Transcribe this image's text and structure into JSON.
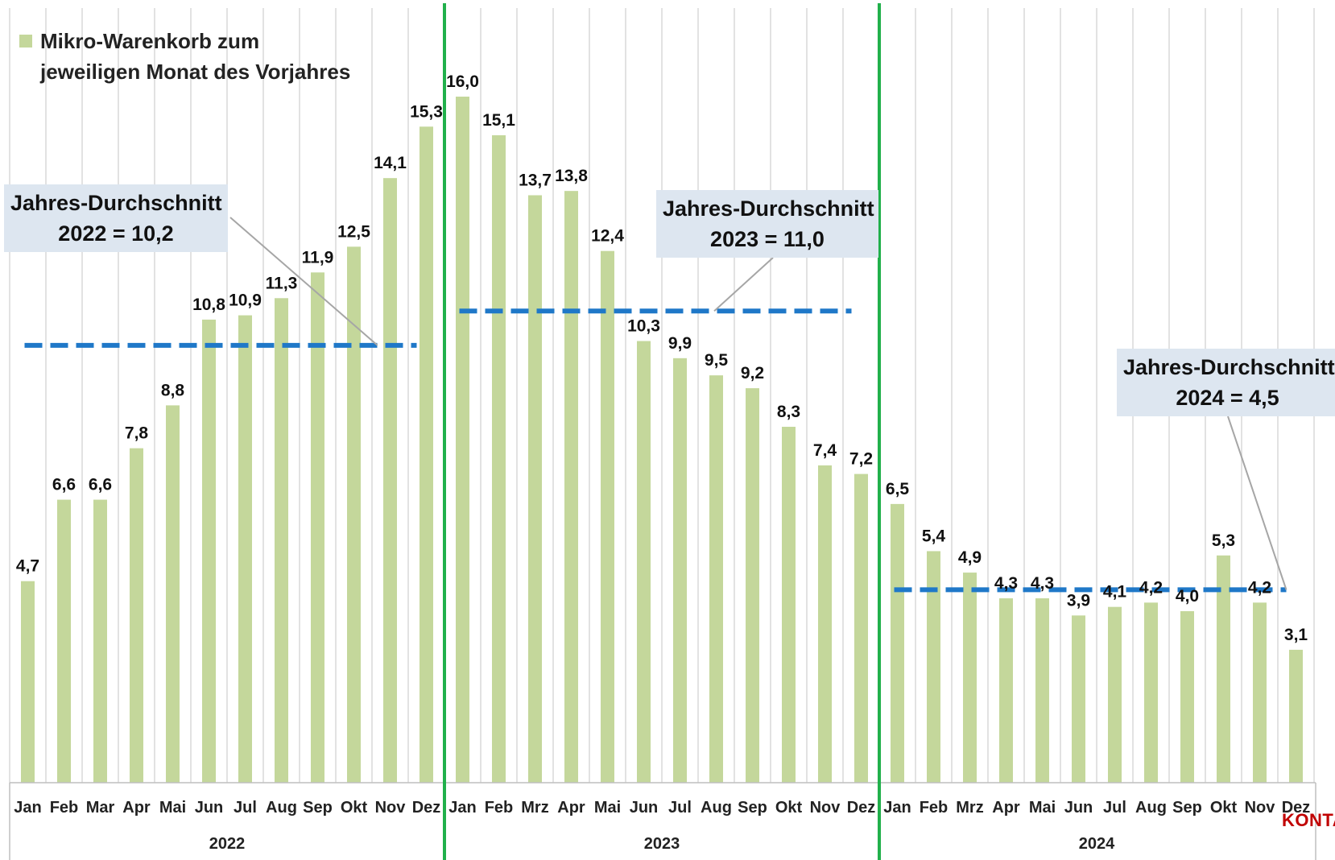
{
  "legend": {
    "line1": "Mikro-Warenkorb zum",
    "line2": "jeweiligen Monat des Vorjahres",
    "color": "#c4d79b"
  },
  "averages": [
    {
      "line1": "Jahres-Durchschnitt",
      "line2": "2022 = 10,2",
      "value": 10.2
    },
    {
      "line1": "Jahres-Durchschnitt",
      "line2": "2023 = 11,0",
      "value": 11.0
    },
    {
      "line1": "Jahres-Durchschnitt",
      "line2": "2024 = 4,5",
      "value": 4.5
    }
  ],
  "brand": "KONTA",
  "colors": {
    "bar": "#c4d79b",
    "average_line": "#1f78c8",
    "year_divider": "#21b04b",
    "gridline": "#d9d9d9",
    "box": "#dde6f0"
  },
  "chart_data": {
    "type": "bar",
    "ylim": [
      0,
      17.6
    ],
    "grid": true,
    "legend_position": "top-left",
    "years": [
      {
        "label": "2022",
        "months": [
          "Jan",
          "Feb",
          "Mar",
          "Apr",
          "Mai",
          "Jun",
          "Jul",
          "Aug",
          "Sep",
          "Okt",
          "Nov",
          "Dez"
        ],
        "values": [
          4.7,
          6.6,
          6.6,
          7.8,
          8.8,
          10.8,
          10.9,
          11.3,
          11.9,
          12.5,
          14.1,
          15.3
        ],
        "labels": [
          "4,7",
          "6,6",
          "6,6",
          "7,8",
          "8,8",
          "10,8",
          "10,9",
          "11,3",
          "11,9",
          "12,5",
          "14,1",
          "15,3"
        ],
        "average": 10.2
      },
      {
        "label": "2023",
        "months": [
          "Jan",
          "Feb",
          "Mrz",
          "Apr",
          "Mai",
          "Jun",
          "Jul",
          "Aug",
          "Sep",
          "Okt",
          "Nov",
          "Dez"
        ],
        "values": [
          16.0,
          15.1,
          13.7,
          13.8,
          12.4,
          10.3,
          9.9,
          9.5,
          9.2,
          8.3,
          7.4,
          7.2
        ],
        "labels": [
          "16,0",
          "15,1",
          "13,7",
          "13,8",
          "12,4",
          "10,3",
          "9,9",
          "9,5",
          "9,2",
          "8,3",
          "7,4",
          "7,2"
        ],
        "average": 11.0
      },
      {
        "label": "2024",
        "months": [
          "Jan",
          "Feb",
          "Mrz",
          "Apr",
          "Mai",
          "Jun",
          "Jul",
          "Aug",
          "Sep",
          "Okt",
          "Nov",
          "Dez"
        ],
        "values": [
          6.5,
          5.4,
          4.9,
          4.3,
          4.3,
          3.9,
          4.1,
          4.2,
          4.0,
          5.3,
          4.2,
          3.1
        ],
        "labels": [
          "6,5",
          "5,4",
          "4,9",
          "4,3",
          "4,3",
          "3,9",
          "4,1",
          "4,2",
          "4,0",
          "5,3",
          "4,2",
          "3,1"
        ],
        "average": 4.5
      }
    ]
  }
}
